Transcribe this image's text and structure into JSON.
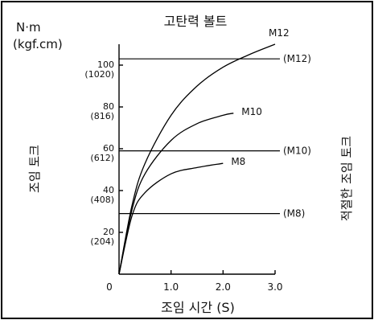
{
  "chart_data": {
    "type": "line",
    "title": "고탄력 볼트",
    "unit_top": "N·m",
    "unit_bottom": "(kgf.cm)",
    "ylabel": "조임 토크",
    "xlabel": "조임 시간 (S)",
    "right_label": "적절한 조임 토크",
    "xlim": [
      0,
      3.0
    ],
    "ylim": [
      0,
      110
    ],
    "x_ticks": [
      {
        "value": 0,
        "label": "0"
      },
      {
        "value": 1.0,
        "label": "1.0"
      },
      {
        "value": 2.0,
        "label": "2.0"
      },
      {
        "value": 3.0,
        "label": "3.0"
      }
    ],
    "y_ticks": [
      {
        "value": 100,
        "label": "100",
        "sublabel": "(1020)"
      },
      {
        "value": 80,
        "label": "80",
        "sublabel": "(816)"
      },
      {
        "value": 60,
        "label": "60",
        "sublabel": "(612)"
      },
      {
        "value": 40,
        "label": "40",
        "sublabel": "(408)"
      },
      {
        "value": 20,
        "label": "20",
        "sublabel": "(204)"
      }
    ],
    "series": [
      {
        "name": "M12",
        "label": "M12",
        "x": [
          0,
          0.25,
          0.5,
          1.0,
          1.5,
          2.0,
          2.5,
          3.0
        ],
        "y": [
          0,
          33,
          53,
          76,
          90,
          99,
          105,
          110
        ]
      },
      {
        "name": "M10",
        "label": "M10",
        "x": [
          0,
          0.25,
          0.5,
          1.0,
          1.5,
          2.0,
          2.2
        ],
        "y": [
          0,
          31,
          48,
          64,
          72,
          76,
          77
        ]
      },
      {
        "name": "M8",
        "label": "M8",
        "x": [
          0,
          0.25,
          0.5,
          1.0,
          1.5,
          2.0
        ],
        "y": [
          0,
          28,
          39,
          48,
          51,
          53
        ]
      }
    ],
    "reference_lines": [
      {
        "name": "M12",
        "label": "(M12)",
        "value": 103
      },
      {
        "name": "M10",
        "label": "(M10)",
        "value": 59
      },
      {
        "name": "M8",
        "label": "(M8)",
        "value": 29
      }
    ]
  }
}
